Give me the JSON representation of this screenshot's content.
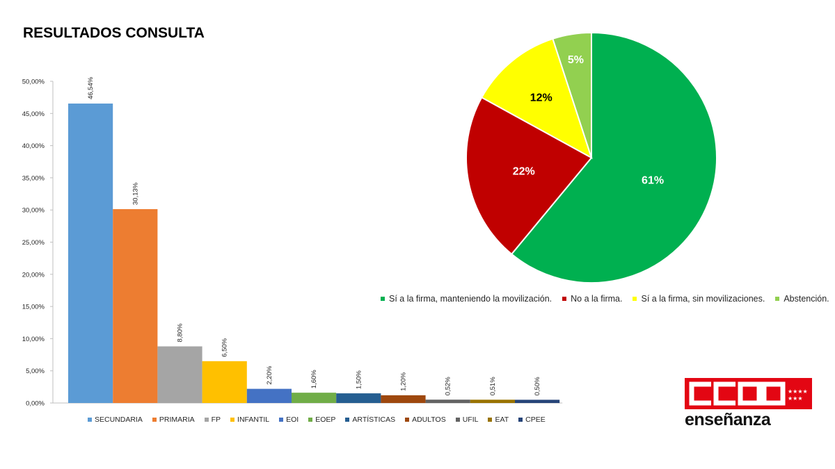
{
  "title": "RESULTADOS CONSULTA",
  "chart_data": [
    {
      "type": "bar",
      "categories": [
        "SECUNDARIA",
        "PRIMARIA",
        "FP",
        "INFANTIL",
        "EOI",
        "EOEP",
        "ARTÍSTICAS",
        "ADULTOS",
        "UFIL",
        "EAT",
        "CPEE"
      ],
      "values": [
        46.54,
        30.13,
        8.8,
        6.5,
        2.2,
        1.6,
        1.5,
        1.2,
        0.52,
        0.51,
        0.5
      ],
      "data_labels": [
        "46,54%",
        "30,13%",
        "8,80%",
        "6,50%",
        "2,20%",
        "1,60%",
        "1,50%",
        "1,20%",
        "0,52%",
        "0,51%",
        "0,50%"
      ],
      "colors": [
        "#5b9bd5",
        "#ed7d31",
        "#a5a5a5",
        "#ffc000",
        "#4472c4",
        "#70ad47",
        "#255e91",
        "#9e480e",
        "#636363",
        "#997300",
        "#264478"
      ],
      "ylim": [
        0,
        50
      ],
      "yticks": [
        "0,00%",
        "5,00%",
        "10,00%",
        "15,00%",
        "20,00%",
        "25,00%",
        "30,00%",
        "35,00%",
        "40,00%",
        "45,00%",
        "50,00%"
      ],
      "legend_position": "bottom"
    },
    {
      "type": "pie",
      "labels": [
        "Sí a la firma, manteniendo la movilización.",
        "No a la firma.",
        "Sí a la firma, sin movilizaciones.",
        "Abstención."
      ],
      "values": [
        61,
        22,
        12,
        5
      ],
      "data_labels": [
        "61%",
        "22%",
        "12%",
        "5%"
      ],
      "colors": [
        "#00b050",
        "#c00000",
        "#ffff00",
        "#92d050"
      ],
      "label_colors": [
        "#ffffff",
        "#ffffff",
        "#000000",
        "#ffffff"
      ],
      "legend_position": "bottom"
    }
  ],
  "logo": {
    "text": "CCOO",
    "subtitle": "enseñanza",
    "color": "#e30613"
  }
}
